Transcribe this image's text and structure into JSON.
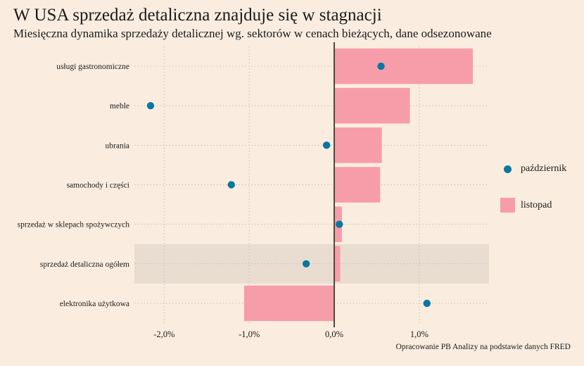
{
  "title": "W USA sprzedaż detaliczna znajduje się w stagnacji",
  "subtitle": "Miesięczna dynamika sprzedaży detalicznej wg. sektorów w cenach bieżących, dane odsezonowane",
  "caption": "Opracowanie PB Analizy na podstawie danych FRED",
  "colors": {
    "background": "#FAEDE0",
    "bar": "#F79DAA",
    "point": "#0A77A1",
    "highlight": "#E8DDD0",
    "zero_line": "#4A4A3A",
    "grid": "#C9BFB3"
  },
  "legend": [
    {
      "label": "październik",
      "type": "point"
    },
    {
      "label": "listopad",
      "type": "bar"
    }
  ],
  "chart_data": {
    "type": "bar",
    "orientation": "horizontal",
    "title": "W USA sprzedaż detaliczna znajduje się w stagnacji",
    "subtitle": "Miesięczna dynamika sprzedaży detalicznej wg. sektorów w cenach bieżących, dane odsezonowane",
    "xlabel": "",
    "ylabel": "",
    "xlim": [
      -2.35,
      1.82
    ],
    "x_ticks": [
      -2.0,
      -1.0,
      0.0,
      1.0
    ],
    "x_tick_labels": [
      "-2,0%",
      "-1,0%",
      "0,0%",
      "1,0%"
    ],
    "grid": true,
    "legend_position": "right",
    "highlighted_category": "sprzedaż detaliczna ogółem",
    "categories": [
      "usługi gastronomiczne",
      "meble",
      "ubrania",
      "samochody i części",
      "sprzedaż w sklepach spożywczych",
      "sprzedaż detaliczna ogółem",
      "elektronika użytkowa"
    ],
    "series": [
      {
        "name": "listopad",
        "mark": "bar",
        "values": [
          1.63,
          0.89,
          0.56,
          0.54,
          0.09,
          0.07,
          -1.06
        ]
      },
      {
        "name": "październik",
        "mark": "point",
        "values": [
          0.55,
          -2.16,
          -0.09,
          -1.21,
          0.06,
          -0.33,
          1.09
        ]
      }
    ]
  }
}
